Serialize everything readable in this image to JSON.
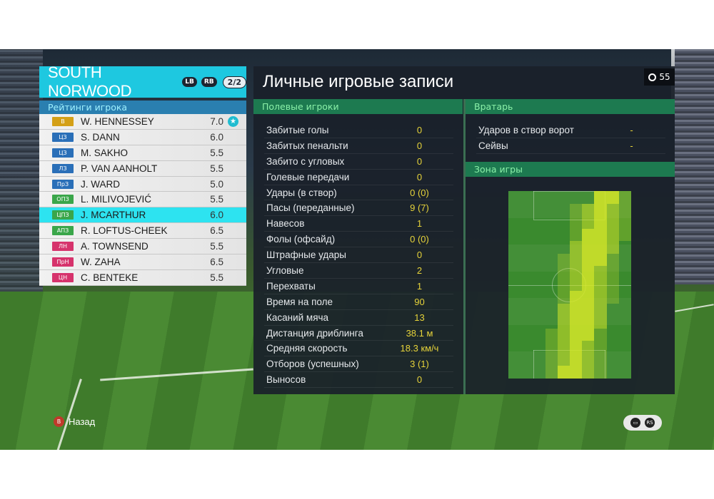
{
  "team": {
    "name": "SOUTH NORWOOD",
    "tag1": "LB",
    "tag2": "RB",
    "page": "2/2"
  },
  "ratings_header": "Рейтинги игрока",
  "players": [
    {
      "pos": "В",
      "pos_color": "#d4a017",
      "name": "W. HENNESSEY",
      "rating": "7.0",
      "star": true
    },
    {
      "pos": "ЦЗ",
      "pos_color": "#2a6fb8",
      "name": "S. DANN",
      "rating": "6.0"
    },
    {
      "pos": "ЦЗ",
      "pos_color": "#2a6fb8",
      "name": "M. SAKHO",
      "rating": "5.5"
    },
    {
      "pos": "ЛЗ",
      "pos_color": "#2a6fb8",
      "name": "P. VAN AANHOLT",
      "rating": "5.5"
    },
    {
      "pos": "ПрЗ",
      "pos_color": "#2a6fb8",
      "name": "J. WARD",
      "rating": "5.0"
    },
    {
      "pos": "ОПЗ",
      "pos_color": "#3aa64a",
      "name": "L. MILIVOJEVIĆ",
      "rating": "5.5"
    },
    {
      "pos": "ЦПЗ",
      "pos_color": "#3aa64a",
      "name": "J. MCARTHUR",
      "rating": "6.0",
      "selected": true
    },
    {
      "pos": "АПЗ",
      "pos_color": "#3aa64a",
      "name": "R. LOFTUS-CHEEK",
      "rating": "6.5"
    },
    {
      "pos": "ЛН",
      "pos_color": "#d6336c",
      "name": "A. TOWNSEND",
      "rating": "5.5"
    },
    {
      "pos": "ПрН",
      "pos_color": "#d6336c",
      "name": "W. ZAHA",
      "rating": "6.5"
    },
    {
      "pos": "ЦН",
      "pos_color": "#d6336c",
      "name": "C. BENTEKE",
      "rating": "5.5"
    }
  ],
  "main": {
    "title": "Личные игровые записи",
    "clock": "55",
    "field_players_header": "Полевые игроки",
    "goalkeeper_header": "Вратарь",
    "zone_header": "Зона игры"
  },
  "stats": [
    {
      "label": "Забитые голы",
      "value": "0"
    },
    {
      "label": "Забитых пенальти",
      "value": "0"
    },
    {
      "label": "Забито с угловых",
      "value": "0"
    },
    {
      "label": "Голевые передачи",
      "value": "0"
    },
    {
      "label": "Удары (в створ)",
      "value": "0 (0)"
    },
    {
      "label": "Пасы (переданные)",
      "value": "9 (7)"
    },
    {
      "label": "Навесов",
      "value": "1"
    },
    {
      "label": "Фолы (офсайд)",
      "value": "0 (0)"
    },
    {
      "label": "Штрафные удары",
      "value": "0"
    },
    {
      "label": "Угловые",
      "value": "2"
    },
    {
      "label": "Перехваты",
      "value": "1"
    },
    {
      "label": "Время на поле",
      "value": "90"
    },
    {
      "label": "Касаний мяча",
      "value": "13"
    },
    {
      "label": "Дистанция дриблинга",
      "value": "38.1 м"
    },
    {
      "label": "Средняя скорость",
      "value": "18.3 км/ч"
    },
    {
      "label": "Отборов (успешных)",
      "value": "3 (1)"
    },
    {
      "label": "Выносов",
      "value": "0"
    }
  ],
  "gk_stats": [
    {
      "label": "Ударов в створ ворот",
      "value": "-"
    },
    {
      "label": "Сейвы",
      "value": "-"
    }
  ],
  "footer": {
    "back_button": "B",
    "back_label": "Назад"
  },
  "colors": {
    "accent": "#1ec8e0",
    "stat_value": "#e6d33a",
    "section_green": "#1d7a50"
  }
}
